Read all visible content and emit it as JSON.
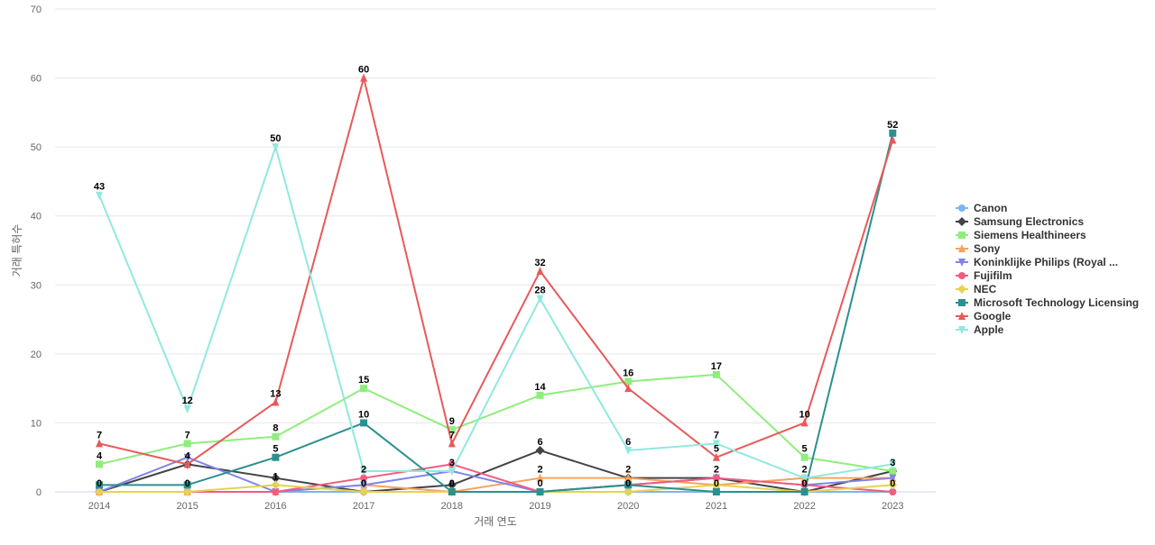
{
  "chart_data": {
    "type": "line",
    "xlabel": "거래 연도",
    "ylabel": "거래 특허수",
    "ylim": [
      0,
      70
    ],
    "yticks": [
      0,
      10,
      20,
      30,
      40,
      50,
      60,
      70
    ],
    "grid": true,
    "legend_position": "right",
    "categories": [
      "2014",
      "2015",
      "2016",
      "2017",
      "2018",
      "2019",
      "2020",
      "2021",
      "2022",
      "2023"
    ],
    "series": [
      {
        "name": "Canon",
        "color": "#7cb5ec",
        "marker": "circle",
        "values": [
          0,
          0,
          0,
          0,
          0,
          0,
          0,
          0,
          0,
          0
        ]
      },
      {
        "name": "Samsung Electronics",
        "color": "#434348",
        "marker": "diamond",
        "values": [
          0,
          4,
          2,
          0,
          1,
          6,
          2,
          2,
          0,
          3
        ]
      },
      {
        "name": "Siemens Healthineers",
        "color": "#90ed7d",
        "marker": "square",
        "values": [
          4,
          7,
          8,
          15,
          9,
          14,
          16,
          17,
          5,
          3
        ]
      },
      {
        "name": "Sony",
        "color": "#f7a35c",
        "marker": "triangle",
        "values": [
          0,
          0,
          0,
          1,
          0,
          2,
          2,
          1,
          2,
          2
        ]
      },
      {
        "name": "Koninklijke Philips (Royal ...",
        "color": "#8085e9",
        "marker": "triangle-down",
        "values": [
          0,
          5,
          0,
          1,
          3,
          0,
          1,
          2,
          1,
          2
        ]
      },
      {
        "name": "Fujifilm",
        "color": "#f15c80",
        "marker": "circle",
        "values": [
          0,
          0,
          0,
          2,
          4,
          0,
          1,
          2,
          1,
          0
        ]
      },
      {
        "name": "NEC",
        "color": "#e4d354",
        "marker": "diamond",
        "values": [
          0,
          0,
          1,
          0,
          0,
          0,
          0,
          1,
          0,
          1
        ]
      },
      {
        "name": "Microsoft Technology Licensing",
        "color": "#2b908f",
        "marker": "square",
        "values": [
          1,
          1,
          5,
          10,
          0,
          0,
          1,
          0,
          0,
          52
        ]
      },
      {
        "name": "Google",
        "color": "#e8595a",
        "marker": "triangle",
        "values": [
          7,
          4,
          13,
          60,
          7,
          32,
          15,
          5,
          10,
          51
        ]
      },
      {
        "name": "Apple",
        "color": "#91e8e1",
        "marker": "triangle-down",
        "values": [
          43,
          12,
          50,
          3,
          3,
          28,
          6,
          7,
          2,
          4
        ]
      }
    ],
    "data_labels": [
      {
        "category": "2014",
        "items": [
          {
            "text": "43",
            "value": 43
          },
          {
            "text": "7",
            "value": 7
          },
          {
            "text": "4",
            "value": 4
          },
          {
            "text": "0",
            "value": 0
          }
        ]
      },
      {
        "category": "2015",
        "items": [
          {
            "text": "12",
            "value": 12
          },
          {
            "text": "7",
            "value": 7
          },
          {
            "text": "4",
            "value": 4
          },
          {
            "text": "0",
            "value": 0
          }
        ]
      },
      {
        "category": "2016",
        "items": [
          {
            "text": "50",
            "value": 50
          },
          {
            "text": "13",
            "value": 13
          },
          {
            "text": "8",
            "value": 8
          },
          {
            "text": "5",
            "value": 5
          },
          {
            "text": "1",
            "value": 1
          }
        ]
      },
      {
        "category": "2017",
        "items": [
          {
            "text": "60",
            "value": 60
          },
          {
            "text": "15",
            "value": 15
          },
          {
            "text": "10",
            "value": 10
          },
          {
            "text": "2",
            "value": 2
          },
          {
            "text": "0",
            "value": 0
          }
        ]
      },
      {
        "category": "2018",
        "items": [
          {
            "text": "9",
            "value": 9
          },
          {
            "text": "7",
            "value": 7
          },
          {
            "text": "3",
            "value": 3
          },
          {
            "text": "0",
            "value": 0
          }
        ]
      },
      {
        "category": "2019",
        "items": [
          {
            "text": "32",
            "value": 32
          },
          {
            "text": "28",
            "value": 28
          },
          {
            "text": "14",
            "value": 14
          },
          {
            "text": "6",
            "value": 6
          },
          {
            "text": "2",
            "value": 2
          },
          {
            "text": "0",
            "value": 0
          }
        ]
      },
      {
        "category": "2020",
        "items": [
          {
            "text": "16",
            "value": 16
          },
          {
            "text": "6",
            "value": 6
          },
          {
            "text": "2",
            "value": 2
          },
          {
            "text": "0",
            "value": 0
          }
        ]
      },
      {
        "category": "2021",
        "items": [
          {
            "text": "17",
            "value": 17
          },
          {
            "text": "7",
            "value": 7
          },
          {
            "text": "5",
            "value": 5
          },
          {
            "text": "2",
            "value": 2
          },
          {
            "text": "0",
            "value": 0
          }
        ]
      },
      {
        "category": "2022",
        "items": [
          {
            "text": "10",
            "value": 10
          },
          {
            "text": "5",
            "value": 5
          },
          {
            "text": "2",
            "value": 2
          },
          {
            "text": "0",
            "value": 0
          }
        ]
      },
      {
        "category": "2023",
        "items": [
          {
            "text": "52",
            "value": 52
          },
          {
            "text": "3",
            "value": 3
          },
          {
            "text": "0",
            "value": 0
          }
        ]
      }
    ]
  }
}
